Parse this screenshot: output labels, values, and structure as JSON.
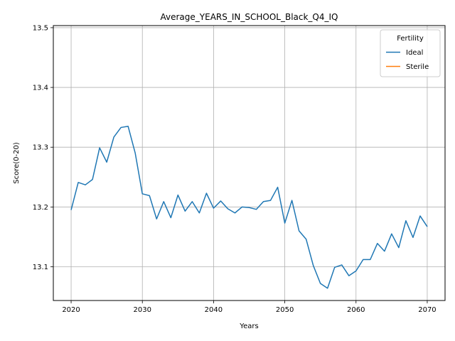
{
  "chart_data": {
    "type": "line",
    "title": "Average_YEARS_IN_SCHOOL_Black_Q4_IQ",
    "xlabel": "Years",
    "ylabel": "Score(0-20)",
    "xlim": [
      2017.5,
      2072.5
    ],
    "ylim": [
      13.0435,
      13.5035
    ],
    "xticks": [
      2020,
      2030,
      2040,
      2050,
      2060,
      2070
    ],
    "yticks": [
      13.1,
      13.2,
      13.3,
      13.4,
      13.5
    ],
    "xtick_labels": [
      "2020",
      "2030",
      "2040",
      "2050",
      "2060",
      "2070"
    ],
    "ytick_labels": [
      "13.1",
      "13.2",
      "13.3",
      "13.4",
      "13.5"
    ],
    "grid": true,
    "legend": {
      "title": "Fertility",
      "placement": "top-right"
    },
    "series": [
      {
        "name": "Ideal",
        "color": "#1f77b4",
        "x": [
          2020,
          2021,
          2022,
          2023,
          2024,
          2025,
          2026,
          2027,
          2028,
          2029,
          2030,
          2031,
          2032,
          2033,
          2034,
          2035,
          2036,
          2037,
          2038,
          2039,
          2040,
          2041,
          2042,
          2043,
          2044,
          2045,
          2046,
          2047,
          2048,
          2049,
          2050,
          2051,
          2052,
          2053,
          2054,
          2055,
          2056,
          2057,
          2058,
          2059,
          2060,
          2061,
          2062,
          2063,
          2064,
          2065,
          2066,
          2067,
          2068,
          2069,
          2070
        ],
        "values": [
          13.195,
          13.241,
          13.237,
          13.246,
          13.299,
          13.275,
          13.317,
          13.333,
          13.335,
          13.29,
          13.222,
          13.219,
          13.18,
          13.209,
          13.182,
          13.22,
          13.193,
          13.209,
          13.19,
          13.223,
          13.198,
          13.21,
          13.197,
          13.19,
          13.2,
          13.199,
          13.196,
          13.209,
          13.211,
          13.233,
          13.173,
          13.211,
          13.16,
          13.146,
          13.102,
          13.072,
          13.064,
          13.099,
          13.103,
          13.085,
          13.093,
          13.112,
          13.112,
          13.139,
          13.126,
          13.155,
          13.132,
          13.177,
          13.149,
          13.185,
          13.167
        ]
      },
      {
        "name": "Sterile",
        "color": "#ff7f0e",
        "x": [],
        "values": []
      }
    ]
  }
}
